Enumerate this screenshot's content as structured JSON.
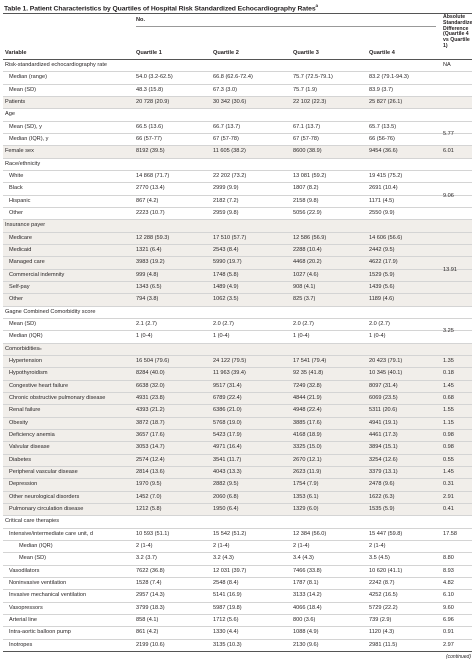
{
  "title": "Table 1. Patient Characteristics by Quartiles of Hospital Risk Standardized Echocardiography Rates",
  "title_sup": "a",
  "columns": {
    "no_label": "No.",
    "variable": "Variable",
    "q1": "Quartile 1",
    "q2": "Quartile 2",
    "q3": "Quartile 3",
    "q4": "Quartile 4",
    "diff": "Absolute Standardized Difference (Quartile 4 vs Quartile 1)"
  },
  "rows": [
    {
      "label": "Risk-standardized echocardiography rate",
      "type": "section",
      "diff": "NA"
    },
    {
      "label": "Median (range)",
      "indent": true,
      "q1": "54.0 (3.2-62.5)",
      "q2": "66.8 (62.6-72.4)",
      "q3": "75.7 (72.5-79.1)",
      "q4": "83.2 (79.1-94.3)"
    },
    {
      "label": "Mean (SD)",
      "indent": true,
      "q1": "48.3 (15.8)",
      "q2": "67.3 (3.0)",
      "q3": "75.7 (1.9)",
      "q4": "83.9 (3.7)"
    },
    {
      "label": "Patients",
      "q1": "20 728 (20.9)",
      "q2": "30 342 (30.6)",
      "q3": "22 102 (22.3)",
      "q4": "25 827 (26.1)"
    },
    {
      "label": "Age",
      "type": "section"
    },
    {
      "label": "Mean (SD), y",
      "indent": true,
      "q1": "66.5 (13.6)",
      "q2": "66.7 (13.7)",
      "q3": "67.1 (13.7)",
      "q4": "65.7 (13.5)"
    },
    {
      "label": "Median (IQR), y",
      "indent": true,
      "q1": "66 (57-77)",
      "q2": "67 (57-78)",
      "q3": "67 (57-78)",
      "q4": "66 (56-76)"
    },
    {
      "label": "Female sex",
      "q1": "8192 (39.5)",
      "q2": "11 605 (38.2)",
      "q3": "8600 (38.9)",
      "q4": "9454 (36.6)",
      "diff": "6.01"
    },
    {
      "label": "Race/ethnicity",
      "type": "section"
    },
    {
      "label": "White",
      "indent": true,
      "q1": "14 868 (71.7)",
      "q2": "22 202 (73.2)",
      "q3": "13 081 (59.2)",
      "q4": "19 415 (75.2)"
    },
    {
      "label": "Black",
      "indent": true,
      "q1": "2770 (13.4)",
      "q2": "2999 (9.9)",
      "q3": "1807 (8.2)",
      "q4": "2691 (10.4)"
    },
    {
      "label": "Hispanic",
      "indent": true,
      "q1": "867 (4.2)",
      "q2": "2182 (7.2)",
      "q3": "2158 (9.8)",
      "q4": "1171 (4.5)"
    },
    {
      "label": "Other",
      "indent": true,
      "q1": "2223 (10.7)",
      "q2": "2959 (9.8)",
      "q3": "5056 (22.9)",
      "q4": "2550 (9.9)"
    },
    {
      "label": "Insurance payer",
      "type": "section"
    },
    {
      "label": "Medicare",
      "indent": true,
      "q1": "12 288 (59.3)",
      "q2": "17 510 (57.7)",
      "q3": "12 586 (56.9)",
      "q4": "14 606 (56.6)"
    },
    {
      "label": "Medicaid",
      "indent": true,
      "q1": "1321 (6.4)",
      "q2": "2543 (8.4)",
      "q3": "2288 (10.4)",
      "q4": "2442 (9.5)"
    },
    {
      "label": "Managed care",
      "indent": true,
      "q1": "3983 (19.2)",
      "q2": "5990 (19.7)",
      "q3": "4468 (20.2)",
      "q4": "4622 (17.9)"
    },
    {
      "label": "Commercial indemnity",
      "indent": true,
      "q1": "999 (4.8)",
      "q2": "1748 (5.8)",
      "q3": "1027 (4.6)",
      "q4": "1529 (5.9)"
    },
    {
      "label": "Self-pay",
      "indent": true,
      "q1": "1343 (6.5)",
      "q2": "1489 (4.9)",
      "q3": "908 (4.1)",
      "q4": "1439 (5.6)"
    },
    {
      "label": "Other",
      "indent": true,
      "q1": "794 (3.8)",
      "q2": "1062 (3.5)",
      "q3": "825 (3.7)",
      "q4": "1189 (4.6)"
    },
    {
      "label": "Gagne Combined Comorbidity score",
      "type": "section"
    },
    {
      "label": "Mean (SD)",
      "indent": true,
      "q1": "2.1 (2.7)",
      "q2": "2.0 (2.7)",
      "q3": "2.0 (2.7)",
      "q4": "2.0 (2.7)"
    },
    {
      "label": "Median (IQR)",
      "indent": true,
      "q1": "1 (0-4)",
      "q2": "1 (0-4)",
      "q3": "1 (0-4)",
      "q4": "1 (0-4)"
    },
    {
      "label": "Comorbidities",
      "label_sup": "b",
      "type": "section"
    },
    {
      "label": "Hypertension",
      "indent": true,
      "q1": "16 504 (79.6)",
      "q2": "24 122 (79.5)",
      "q3": "17 541 (79.4)",
      "q4": "20 423 (79.1)",
      "diff": "1.35"
    },
    {
      "label": "Hypothyroidism",
      "indent": true,
      "q1": "8284 (40.0)",
      "q2": "11 963 (39.4)",
      "q3": "92 35 (41.8)",
      "q4": "10 345 (40.1)",
      "diff": "0.18"
    },
    {
      "label": "Congestive heart failure",
      "indent": true,
      "q1": "6638 (32.0)",
      "q2": "9517 (31.4)",
      "q3": "7249 (32.8)",
      "q4": "8097 (31.4)",
      "diff": "1.45"
    },
    {
      "label": "Chronic obstructive pulmonary disease",
      "indent": true,
      "q1": "4931 (23.8)",
      "q2": "6789 (22.4)",
      "q3": "4844 (21.9)",
      "q4": "6069 (23.5)",
      "diff": "0.68"
    },
    {
      "label": "Renal failure",
      "indent": true,
      "q1": "4393 (21.2)",
      "q2": "6386 (21.0)",
      "q3": "4948 (22.4)",
      "q4": "5311 (20.6)",
      "diff": "1.55"
    },
    {
      "label": "Obesity",
      "indent": true,
      "q1": "3872 (18.7)",
      "q2": "5768 (19.0)",
      "q3": "3885 (17.6)",
      "q4": "4941 (19.1)",
      "diff": "1.15"
    },
    {
      "label": "Deficiency anemia",
      "indent": true,
      "q1": "3657 (17.6)",
      "q2": "5423 (17.9)",
      "q3": "4168 (18.9)",
      "q4": "4461 (17.3)",
      "diff": "0.98"
    },
    {
      "label": "Valvular disease",
      "indent": true,
      "q1": "3053 (14.7)",
      "q2": "4971 (16.4)",
      "q3": "3325 (15.0)",
      "q4": "3894 (15.1)",
      "diff": "0.98"
    },
    {
      "label": "Diabetes",
      "indent": true,
      "q1": "2574 (12.4)",
      "q2": "3541 (11.7)",
      "q3": "2670 (12.1)",
      "q4": "3254 (12.6)",
      "diff": "0.55"
    },
    {
      "label": "Peripheral vascular disease",
      "indent": true,
      "q1": "2814 (13.6)",
      "q2": "4043 (13.3)",
      "q3": "2623 (11.9)",
      "q4": "3379 (13.1)",
      "diff": "1.45"
    },
    {
      "label": "Depression",
      "indent": true,
      "q1": "1970 (9.5)",
      "q2": "2882 (9.5)",
      "q3": "1754 (7.9)",
      "q4": "2478 (9.6)",
      "diff": "0.31"
    },
    {
      "label": "Other neurological disorders",
      "indent": true,
      "q1": "1452 (7.0)",
      "q2": "2060 (6.8)",
      "q3": "1353 (6.1)",
      "q4": "1622 (6.3)",
      "diff": "2.91"
    },
    {
      "label": "Pulmonary circulation disease",
      "indent": true,
      "q1": "1212 (5.8)",
      "q2": "1950 (6.4)",
      "q3": "1329 (6.0)",
      "q4": "1535 (5.9)",
      "diff": "0.41"
    },
    {
      "label": "Critical care therapies",
      "type": "section"
    },
    {
      "label": "Intensive/intermediate care unit, d",
      "indent": true,
      "q1": "10 593 (51.1)",
      "q2": "15 542 (51.2)",
      "q3": "12 384 (56.0)",
      "q4": "15 447 (59.8)",
      "diff": "17.58"
    },
    {
      "label": "Median (IQR)",
      "indent": true,
      "deep": true,
      "q1": "2 (1-4)",
      "q2": "2 (1-4)",
      "q3": "2 (1-4)",
      "q4": "2 (1-4)"
    },
    {
      "label": "Mean (SD)",
      "indent": true,
      "deep": true,
      "q1": "3.2 (3.7)",
      "q2": "3.2 (4.3)",
      "q3": "3.4 (4.3)",
      "q4": "3.5 (4.5)",
      "diff": "8.80"
    },
    {
      "label": "Vasodilators",
      "indent": true,
      "q1": "7622 (36.8)",
      "q2": "12 031 (39.7)",
      "q3": "7466 (33.8)",
      "q4": "10 620 (41.1)",
      "diff": "8.93"
    },
    {
      "label": "Noninvasive ventilation",
      "indent": true,
      "q1": "1528 (7.4)",
      "q2": "2548 (8.4)",
      "q3": "1787 (8.1)",
      "q4": "2242 (8.7)",
      "diff": "4.82"
    },
    {
      "label": "Invasive mechanical ventilation",
      "indent": true,
      "q1": "2957 (14.3)",
      "q2": "5141 (16.9)",
      "q3": "3133 (14.2)",
      "q4": "4252 (16.5)",
      "diff": "6.10"
    },
    {
      "label": "Vasopressors",
      "indent": true,
      "q1": "3799 (18.3)",
      "q2": "5987 (19.8)",
      "q3": "4066 (18.4)",
      "q4": "5729 (22.2)",
      "diff": "9.60"
    },
    {
      "label": "Arterial line",
      "indent": true,
      "q1": "858 (4.1)",
      "q2": "1712 (5.6)",
      "q3": "800 (3.6)",
      "q4": "739 (2.9)",
      "diff": "6.96"
    },
    {
      "label": "Intra-aortic balloon pump",
      "indent": true,
      "q1": "861 (4.2)",
      "q2": "1330 (4.4)",
      "q3": "1088 (4.9)",
      "q4": "1120 (4.3)",
      "diff": "0.91"
    },
    {
      "label": "Inotropes",
      "indent": true,
      "q1": "2199 (10.6)",
      "q2": "3135 (10.3)",
      "q3": "2130 (9.6)",
      "q4": "2981 (11.5)",
      "diff": "2.97"
    }
  ],
  "merged_diffs": [
    {
      "key": "age",
      "value": "5.77"
    },
    {
      "key": "race",
      "value": "9.06"
    },
    {
      "key": "insurance",
      "value": "13.91"
    },
    {
      "key": "gagne",
      "value": "3.25"
    }
  ],
  "continued": "(continued)"
}
